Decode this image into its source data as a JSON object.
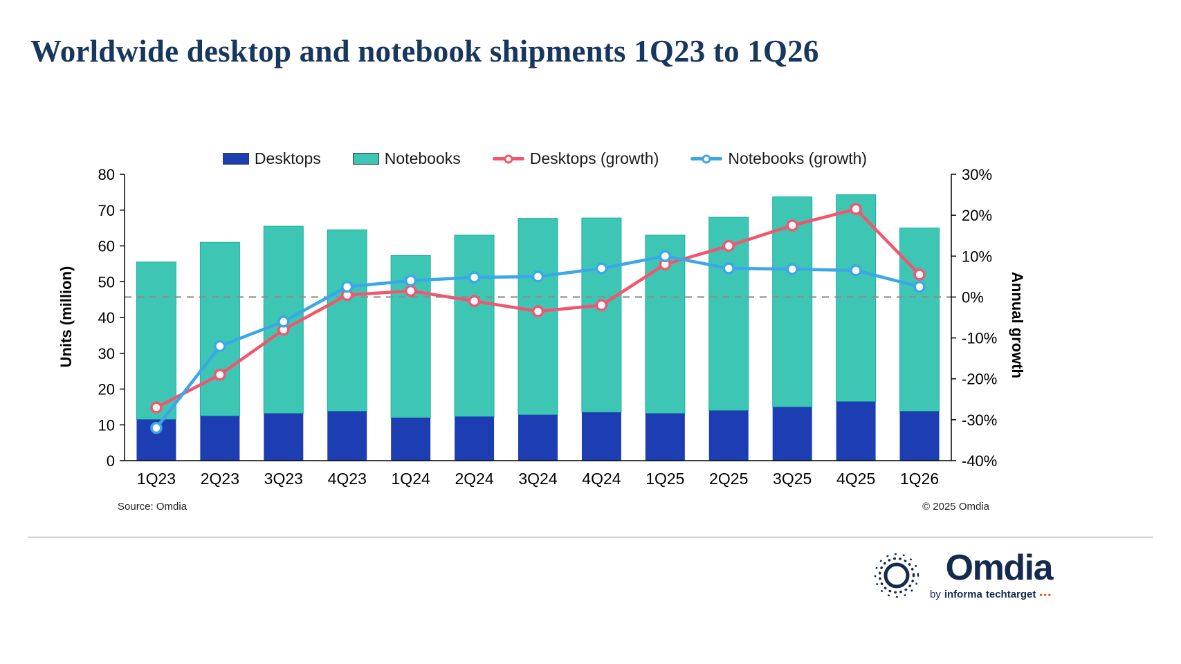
{
  "title": "Worldwide desktop and notebook shipments 1Q23 to 1Q26",
  "footer": {
    "source": "Source: Omdia",
    "copyright": "© 2025 Omdia"
  },
  "logo": {
    "wordmark": "Omdia",
    "by": "by",
    "informa": "informa",
    "techtarget": "techtarget",
    "dots": "•••"
  },
  "colors": {
    "title": "#17375E",
    "desktops_bar": "#1C3EB2",
    "notebooks_bar": "#3EC6B5",
    "desktops_growth": "#F2566E",
    "notebooks_growth": "#3BA7E6",
    "dashed_zero_line": "#8C8C8C",
    "logo_navy": "#142A4E",
    "logo_dots": "#E4572E"
  },
  "chart_data": {
    "type": "bar",
    "subtype": "stacked-bars-with-growth-lines",
    "categories": [
      "1Q23",
      "2Q23",
      "3Q23",
      "4Q23",
      "1Q24",
      "2Q24",
      "3Q24",
      "4Q24",
      "1Q25",
      "2Q25",
      "3Q25",
      "4Q25",
      "1Q26"
    ],
    "bar_series": [
      {
        "name": "Desktops",
        "color": "#1C3EB2",
        "values": [
          11.5,
          12.5,
          13.2,
          13.8,
          12.0,
          12.3,
          12.8,
          13.5,
          13.2,
          14.0,
          15.0,
          16.5,
          13.8
        ]
      },
      {
        "name": "Notebooks",
        "color": "#3EC6B5",
        "values": [
          44.0,
          48.5,
          52.3,
          50.7,
          45.3,
          50.7,
          54.9,
          54.3,
          49.8,
          54.0,
          58.7,
          57.8,
          51.2
        ]
      }
    ],
    "line_series": [
      {
        "name": "Desktops (growth)",
        "color": "#F2566E",
        "values": [
          -27,
          -19,
          -8,
          0.5,
          1.5,
          -1,
          -3.5,
          -2,
          8,
          12.5,
          17.5,
          21.5,
          5.5
        ]
      },
      {
        "name": "Notebooks (growth)",
        "color": "#3BA7E6",
        "values": [
          -32,
          -12,
          -6,
          2.5,
          4,
          4.8,
          5,
          7,
          10,
          7,
          6.8,
          6.5,
          2.5
        ]
      }
    ],
    "left_axis": {
      "label": "Units (million)",
      "min": 0,
      "max": 80,
      "ticks": [
        0,
        10,
        20,
        30,
        40,
        50,
        60,
        70,
        80
      ]
    },
    "right_axis": {
      "label": "Annual growth",
      "min": -40,
      "max": 30,
      "ticks": [
        -40,
        -30,
        -20,
        -10,
        0,
        10,
        20,
        30
      ],
      "suffix": "%"
    },
    "zero_growth_dashline": 0,
    "legend_position": "top",
    "grid": false
  }
}
